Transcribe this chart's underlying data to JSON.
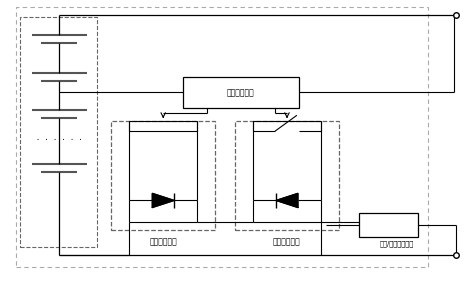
{
  "bg_color": "#ffffff",
  "lc": "#000000",
  "gray": "#999999",
  "light_gray": "#bbbbbb",
  "fig_width": 4.71,
  "fig_height": 2.86,
  "dpi": 100,
  "labels": {
    "control": "模组控制模块",
    "discharge": "放电控制模块",
    "charge": "充电控制模块",
    "sensor": "电流/电压检测模块"
  }
}
